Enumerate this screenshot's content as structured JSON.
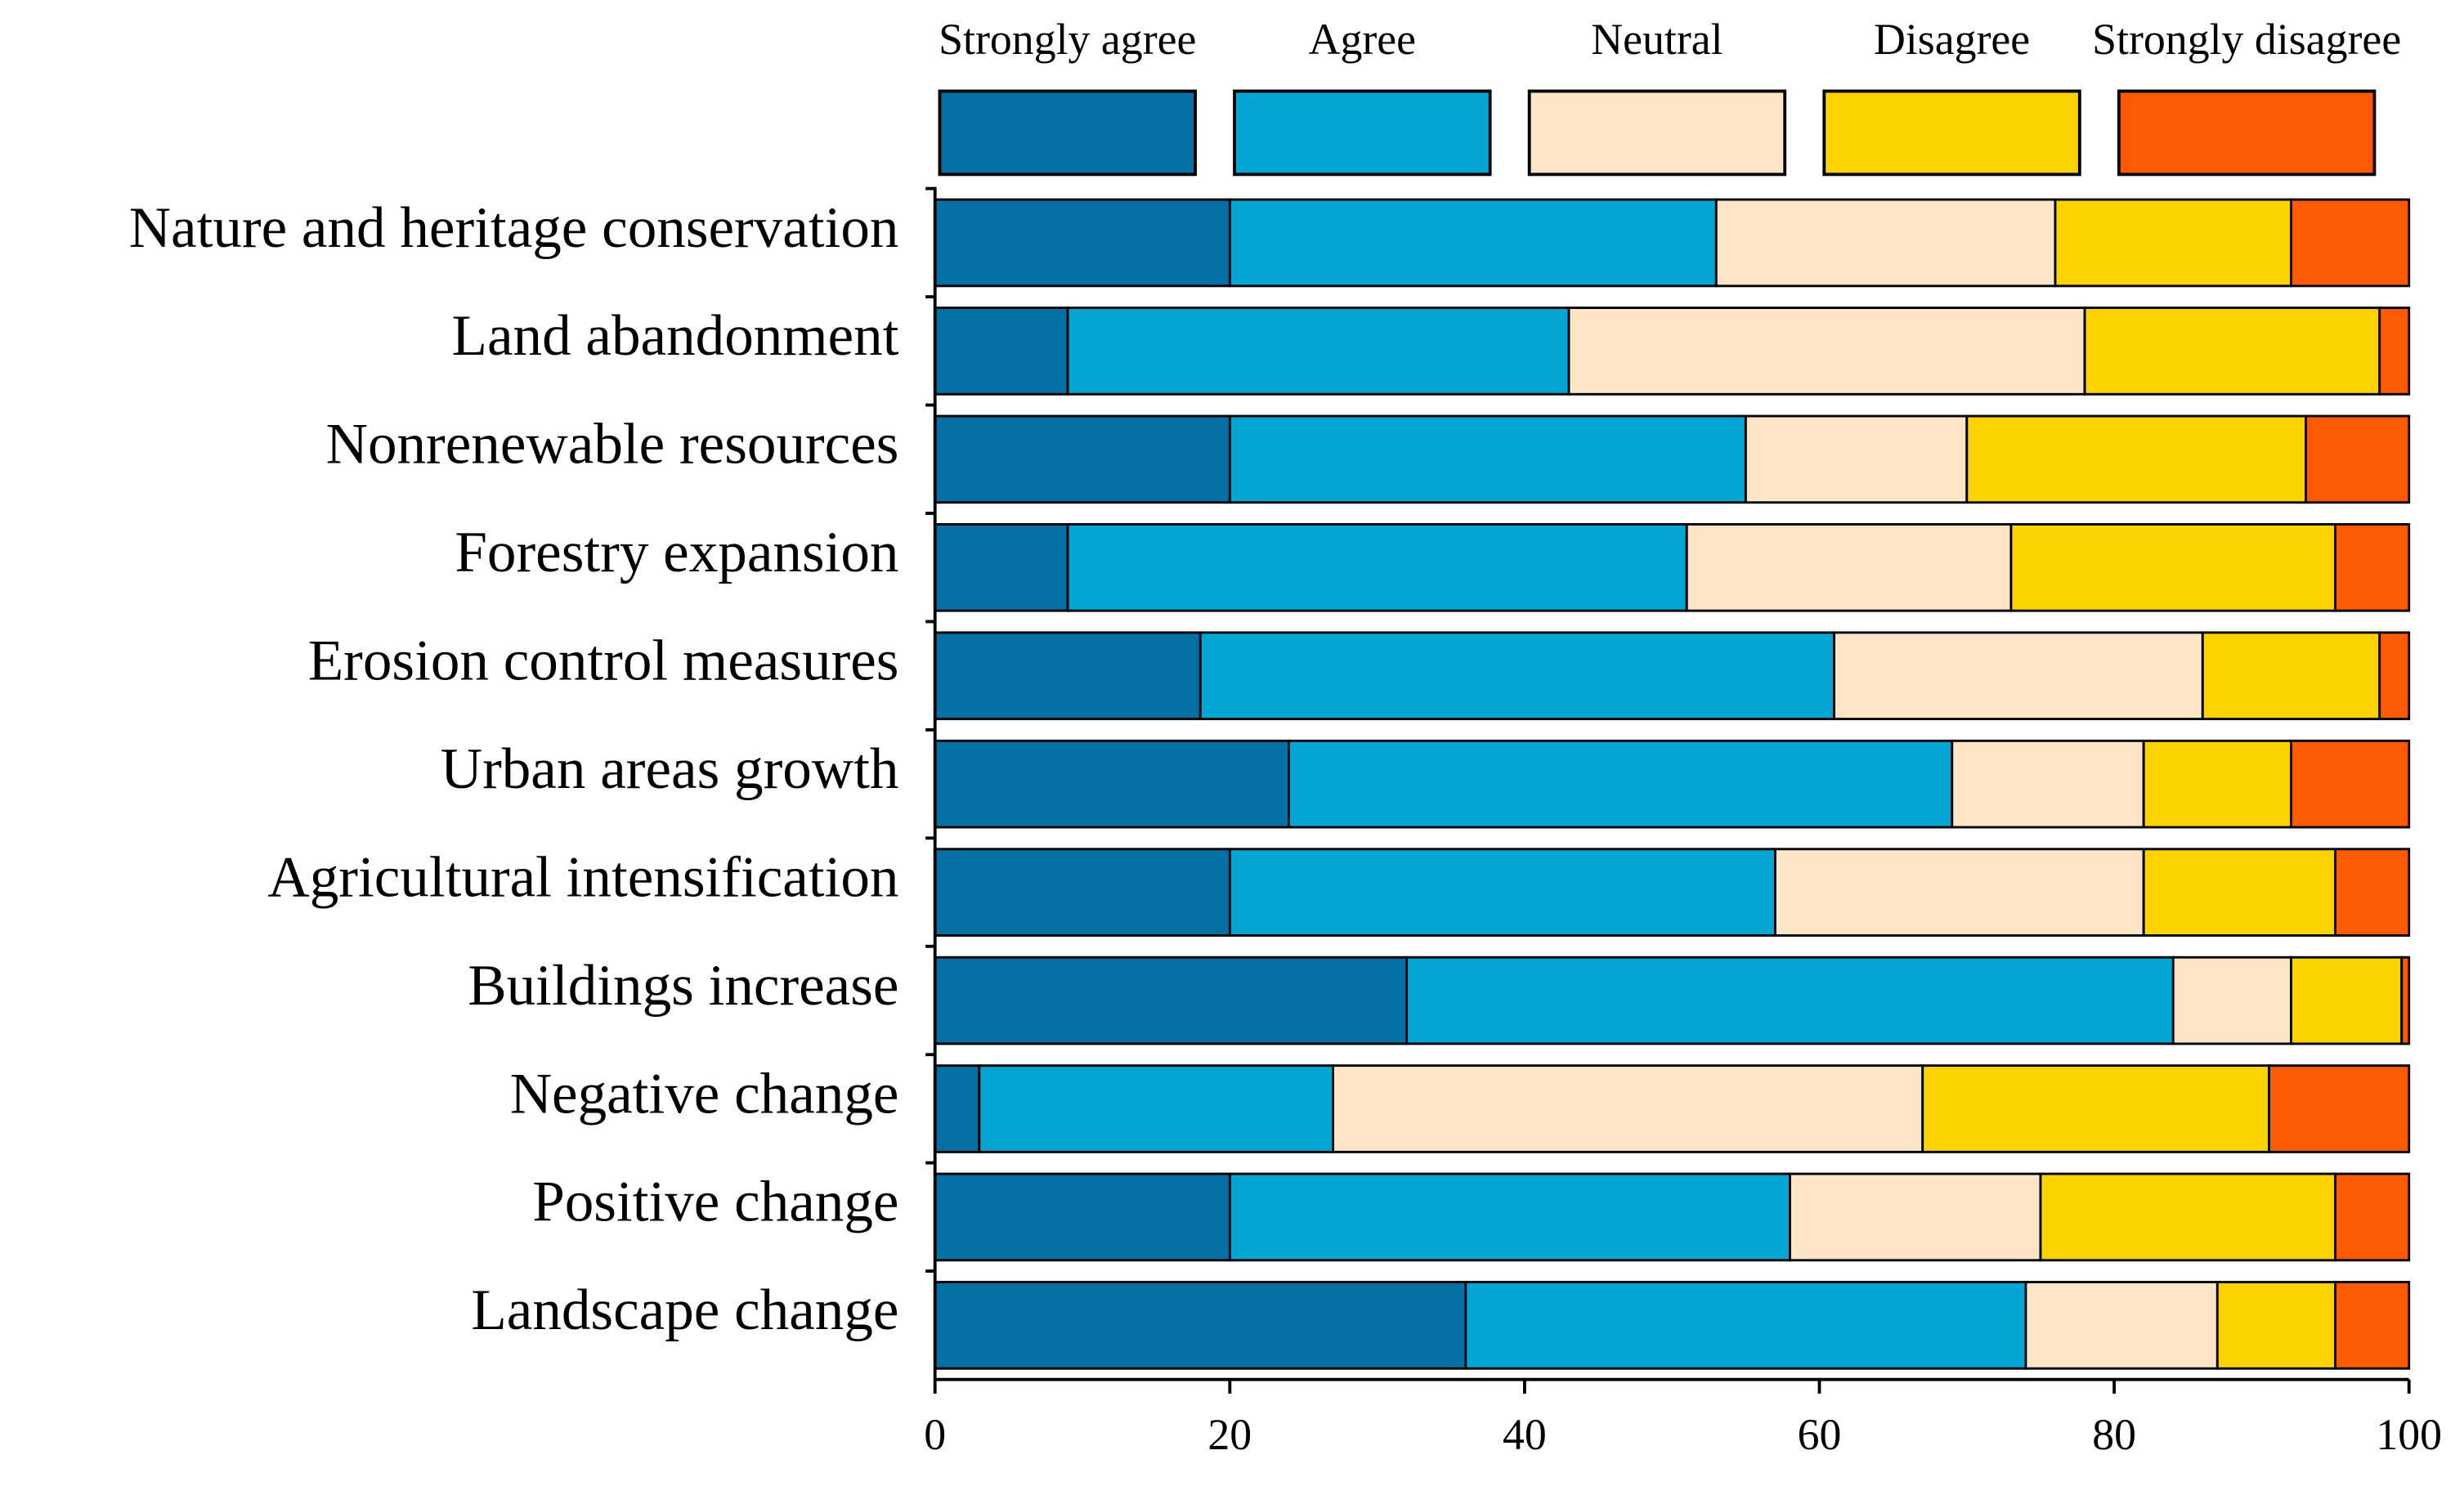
{
  "chart_data": {
    "type": "stacked-barh",
    "categories": [
      "Nature and heritage conservation",
      "Land abandonment",
      "Nonrenewable resources",
      "Forestry expansion",
      "Erosion control measures",
      "Urban areas growth",
      "Agricultural intensification",
      "Buildings increase",
      "Negative change",
      "Positive change",
      "Landscape change"
    ],
    "series": [
      {
        "name": "Strongly agree",
        "color": "#0570a3",
        "values": [
          20,
          9,
          20,
          9,
          18,
          24,
          20,
          32,
          3,
          20,
          36
        ]
      },
      {
        "name": "Agree",
        "color": "#03a5d3",
        "values": [
          33,
          34,
          35,
          42,
          43,
          45,
          37,
          52,
          24,
          38,
          38
        ]
      },
      {
        "name": "Neutral",
        "color": "#fde5c6",
        "values": [
          23,
          35,
          15,
          22,
          25,
          13,
          25,
          8,
          40,
          17,
          13
        ]
      },
      {
        "name": "Disagree",
        "color": "#fcd200",
        "values": [
          16,
          20,
          23,
          22,
          12,
          10,
          13,
          7.5,
          23.5,
          20,
          8
        ]
      },
      {
        "name": "Strongly disagree",
        "color": "#fc5a03",
        "values": [
          8,
          2,
          7,
          5,
          2,
          8,
          5,
          0.5,
          9.5,
          5,
          5
        ]
      }
    ],
    "xlim": [
      0,
      100
    ],
    "xticks": [
      0,
      20,
      40,
      60,
      80,
      100
    ],
    "legend": "top"
  }
}
